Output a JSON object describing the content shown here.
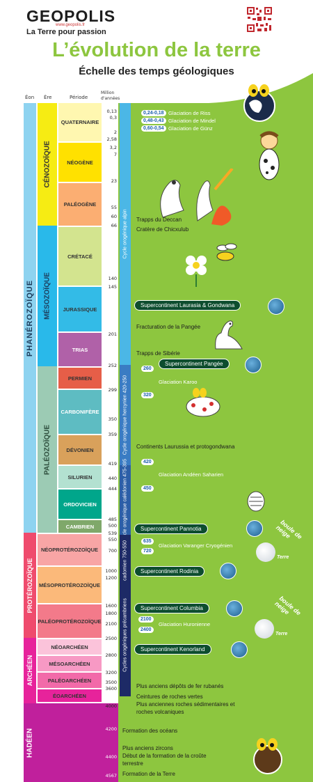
{
  "header": {
    "logo": "GEOPOLIS",
    "logo_url": "www.geopolis.fr",
    "tagline": "La Terre pour passion",
    "title": "L’évolution de la terre",
    "subtitle": "Échelle des temps géologiques"
  },
  "columns": {
    "eon": "Éon",
    "era": "Ère",
    "period": "Période",
    "ma": "Million d'années"
  },
  "eons": {
    "phanerozoic": "PHANÉROZOÏQUE",
    "proterozoic": "PROTÉROZOÏQUE",
    "archean": "ARCHÉEN",
    "hadean": "HADÉEN"
  },
  "eras": {
    "cenozoic": "CÉNOZOÏQUE",
    "mesozoic": "MÉSOZOÏQUE",
    "paleozoic": "PALÉOZOÏQUE"
  },
  "periods": {
    "quaternaire": "QUATERNAIRE",
    "neogene": "NÉOGÈNE",
    "paleogene": "PALÉOGÈNE",
    "cretace": "CRÉTACÉ",
    "jurassique": "JURASSIQUE",
    "trias": "TRIAS",
    "permien": "PERMIEN",
    "carbonifere": "CARBONIFÈRE",
    "devonien": "DÉVONIEN",
    "silurien": "SILURIEN",
    "ordovicien": "ORDOVICIEN",
    "cambrien": "CAMBRIEN",
    "neoproterozoique": "NÉOPROTÉROZOÏQUE",
    "mesoproterozoique": "MÉSOPROTÉROZOÏQUE",
    "paleoproterozoique": "PALÉOPROTÉROZOÏQUE",
    "neoarcheen": "NÉOARCHÉEN",
    "mesoarcheen": "MÉSOARCHÉEN",
    "paleoarcheen": "PALÉOARCHÉEN",
    "eoarcheen": "ÉOARCHÉEN"
  },
  "ma_labels": {
    "m013": "0,13",
    "m03": "0,3",
    "m2": "2",
    "m258": "2,58",
    "m32": "3,2",
    "m7": "7",
    "m23": "23",
    "m55": "55",
    "m60": "60",
    "m66": "66",
    "m140": "140",
    "m145": "145",
    "m201": "201",
    "m252": "252",
    "m299": "299",
    "m350": "350",
    "m359": "359",
    "m419": "419",
    "m440": "440",
    "m444": "444",
    "m485": "485",
    "m500": "500",
    "m539": "539",
    "m550": "550",
    "m700": "700",
    "m1000": "1000",
    "m1200": "1200",
    "m1600": "1600",
    "m1800": "1800",
    "m2100": "2100",
    "m2500": "2500",
    "m2800": "2800",
    "m3200": "3200",
    "m3500": "3500",
    "m3600": "3600",
    "m4000": "4000",
    "m4200": "4200",
    "m4400": "4400",
    "m4567": "4567"
  },
  "cycles": {
    "alpin": "Cycle orogénique alpin",
    "hercynien": "Cycle orogénique hercynien 420-250",
    "caledonien": "Cycle orogénique calédonien 475-395",
    "cadomien": "cadomien 750-550",
    "precambriens": "Cycles orogéniques précambriens"
  },
  "events": {
    "riss_num": "0,24-0,18",
    "riss": "Glaciation de Riss",
    "mindel_num": "0,48-0,43",
    "mindel": "Glaciation de Mindel",
    "gunz_num": "0,60-0,54",
    "gunz": "Glaciation de Günz",
    "deccan": "Trapps du Deccan",
    "chicxulub": "Cratère de Chicxulub",
    "laurasia": "Supercontinent Laurasia & Gondwana",
    "pangee_frac": "Fracturation de la Pangée",
    "siberie": "Trapps de Sibérie",
    "pangee": "Supercontinent Pangée",
    "karoo_num1": "260",
    "karoo": "Glaciation Karoo",
    "karoo_num2": "320",
    "laurussia": "Continents Laurussia et protogondwana",
    "andeen_num1": "420",
    "andeen": "Glaciation Andéen Saharien",
    "andeen_num2": "450",
    "pannotia": "Supercontinent Pannotia",
    "varanger_num1": "635",
    "varanger_num2": "720",
    "varanger": "Glaciation Varanger Cryogénien",
    "snowball": "boule de neige",
    "snowball_terre": "Terre",
    "rodinia": "Supercontinent Rodinia",
    "columbia": "Supercontinent Columbia",
    "huronienne_num1": "2100",
    "huronienne_num2": "2400",
    "huronienne": "Glaciation Huronienne",
    "kenorland": "Supercontinent Kenorland",
    "fer": "Plus anciens dépôts de fer rubanés",
    "roches_vertes": "Ceintures de roches vertes",
    "roches_sed1": "Plus anciennes roches sédimentaires et",
    "roches_sed2": "roches volcaniques",
    "oceans": "Formation des océans",
    "zircons": "Plus anciens zircons",
    "croute1": "Début de la formation de la croûte",
    "croute2": "terrestre",
    "terre": "Formation de la Terre"
  }
}
